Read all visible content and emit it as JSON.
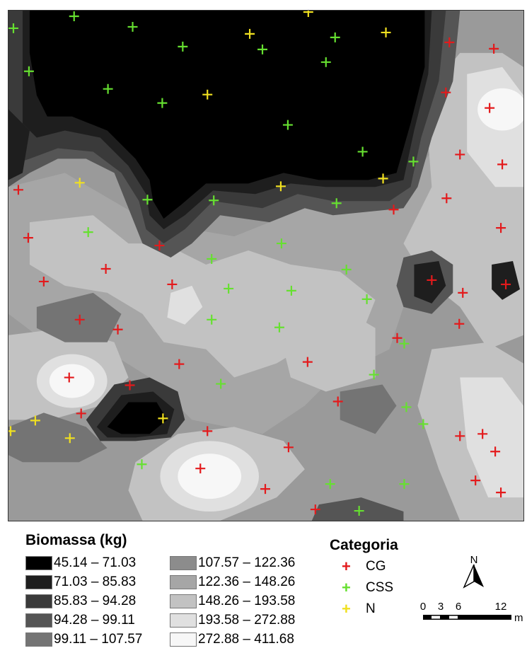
{
  "legend": {
    "biomass_title": "Biomassa (kg)",
    "classes": [
      {
        "label": "45.14 – 71.03",
        "color": "#000000"
      },
      {
        "label": "71.03 – 85.83",
        "color": "#1e1e1e"
      },
      {
        "label": "85.83 – 94.28",
        "color": "#3a3a3a"
      },
      {
        "label": "94.28 – 99.11",
        "color": "#555555"
      },
      {
        "label": "99.11 – 107.57",
        "color": "#747474"
      },
      {
        "label": "107.57 – 122.36",
        "color": "#8c8c8c"
      },
      {
        "label": "122.36 – 148.26",
        "color": "#a6a6a6"
      },
      {
        "label": "148.26 – 193.58",
        "color": "#c2c2c2"
      },
      {
        "label": "193.58 – 272.88",
        "color": "#e0e0e0"
      },
      {
        "label": "272.88 – 411.68",
        "color": "#f7f7f7"
      }
    ],
    "categoria_title": "Categoria",
    "categories": [
      {
        "label": "CG",
        "color": "#e31a1c",
        "symbol": "+"
      },
      {
        "label": "CSS",
        "color": "#66e030",
        "symbol": "+"
      },
      {
        "label": "N",
        "color": "#f0e020",
        "symbol": "+"
      }
    ]
  },
  "north_arrow": {
    "label": "N"
  },
  "scale_bar": {
    "ticks": [
      "0",
      "3",
      "6",
      "12"
    ],
    "unit": "m"
  }
}
